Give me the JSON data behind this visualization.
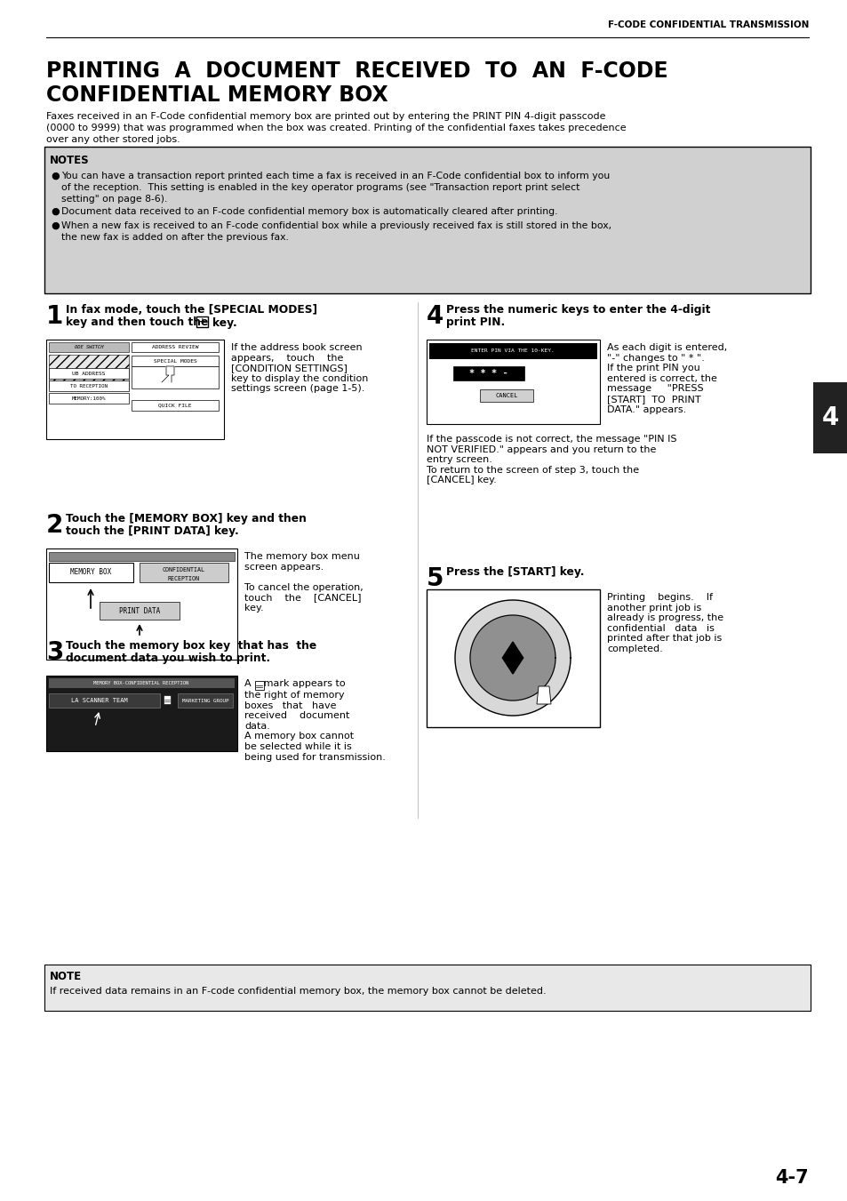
{
  "page_bg": "#ffffff",
  "header_text": "F-CODE CONFIDENTIAL TRANSMISSION",
  "title_line1": "PRINTING  A  DOCUMENT  RECEIVED  TO  AN  F-CODE",
  "title_line2": "CONFIDENTIAL MEMORY BOX",
  "intro_text": "Faxes received in an F-Code confidential memory box are printed out by entering the PRINT PIN 4-digit passcode\n(0000 to 9999) that was programmed when the box was created. Printing of the confidential faxes takes precedence\nover any other stored jobs.",
  "notes_bg": "#d0d0d0",
  "notes_title": "NOTES",
  "note1": "You can have a transaction report printed each time a fax is received in an F-Code confidential box to inform you of the reception.  This setting is enabled in the key operator programs (see \"Transaction report print select setting\" on page 8-6).",
  "note2": "Document data received to an F-code confidential memory box is automatically cleared after printing.",
  "note3": "When a new fax is received to an F-code confidential box while a previously received fax is still stored in the box, the new fax is added on after the previous fax.",
  "step1_desc": "If the address book screen\nappears,    touch    the\n[CONDITION SETTINGS]\nkey to display the condition\nsettings screen (page 1-5).",
  "step2_desc": "The memory box menu\nscreen appears.\n\nTo cancel the operation,\ntouch    the    [CANCEL]\nkey.",
  "step3_desc_a": "A     mark appears to\nthe right of memory\nboxes   that   have\nreceived    document\ndata.",
  "step3_desc_b": "A memory box cannot\nbe selected while it is\nbeing used for transmission.",
  "step4_desc": "As each digit is entered,\n\"-\" changes to \" * \".\nIf the print PIN you\nentered is correct, the\nmessage     \"PRESS\n[START]  TO  PRINT\nDATA.\" appears.",
  "step4_extra": "If the passcode is not correct, the message \"PIN IS\nNOT VERIFIED.\" appears and you return to the\nentry screen.\nTo return to the screen of step 3, touch the\n[CANCEL] key.",
  "step5_desc": "Printing    begins.    If\nanother print job is\nalready is progress, the\nconfidential   data   is\nprinted after that job is\ncompleted.",
  "note_bottom_bg": "#e8e8e8",
  "note_bottom_title": "NOTE",
  "note_bottom_text": "If received data remains in an F-code confidential memory box, the memory box cannot be deleted.",
  "page_number": "4-7",
  "tab_label": "4"
}
